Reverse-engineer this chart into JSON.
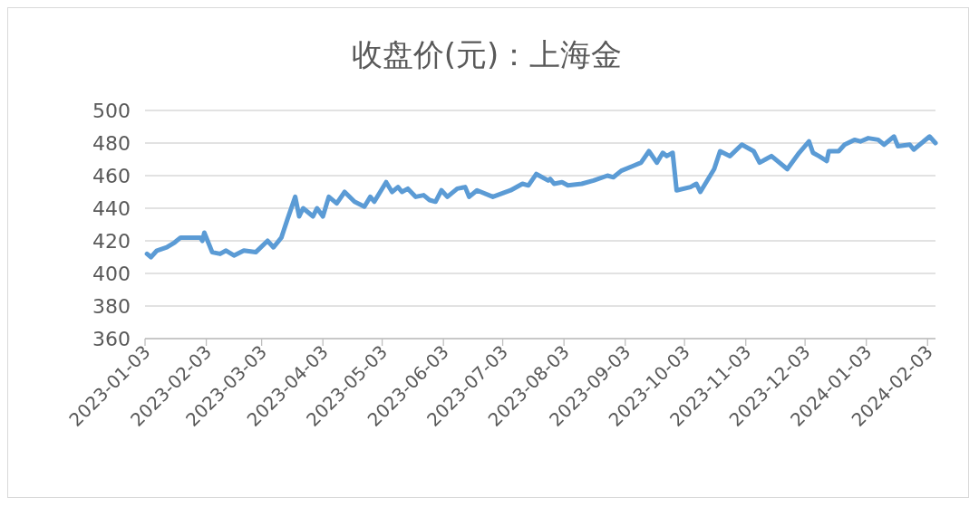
{
  "chart_data": {
    "type": "line",
    "title": "收盘价(元)：上海金",
    "x": [
      "2023-01-04",
      "2023-01-06",
      "2023-01-09",
      "2023-01-14",
      "2023-01-18",
      "2023-01-21",
      "2023-01-31",
      "2023-02-01",
      "2023-02-02",
      "2023-02-06",
      "2023-02-10",
      "2023-02-13",
      "2023-02-17",
      "2023-02-22",
      "2023-02-28",
      "2023-03-06",
      "2023-03-09",
      "2023-03-13",
      "2023-03-16",
      "2023-03-20",
      "2023-03-22",
      "2023-03-24",
      "2023-03-29",
      "2023-03-31",
      "2023-04-03",
      "2023-04-06",
      "2023-04-10",
      "2023-04-14",
      "2023-04-19",
      "2023-04-24",
      "2023-04-27",
      "2023-04-29",
      "2023-05-05",
      "2023-05-08",
      "2023-05-11",
      "2023-05-13",
      "2023-05-16",
      "2023-05-20",
      "2023-05-24",
      "2023-05-27",
      "2023-05-30",
      "2023-06-02",
      "2023-06-05",
      "2023-06-10",
      "2023-06-14",
      "2023-06-16",
      "2023-06-20",
      "2023-06-28",
      "2023-07-07",
      "2023-07-13",
      "2023-07-16",
      "2023-07-20",
      "2023-07-26",
      "2023-07-27",
      "2023-07-29",
      "2023-08-02",
      "2023-08-05",
      "2023-08-12",
      "2023-08-18",
      "2023-08-25",
      "2023-08-28",
      "2023-09-01",
      "2023-09-07",
      "2023-09-11",
      "2023-09-15",
      "2023-09-19",
      "2023-09-22",
      "2023-09-24",
      "2023-09-27",
      "2023-09-29",
      "2023-10-06",
      "2023-10-09",
      "2023-10-11",
      "2023-10-18",
      "2023-10-21",
      "2023-10-26",
      "2023-11-01",
      "2023-11-07",
      "2023-11-10",
      "2023-11-13",
      "2023-11-16",
      "2023-11-24",
      "2023-11-30",
      "2023-12-05",
      "2023-12-07",
      "2023-12-10",
      "2023-12-14",
      "2023-12-15",
      "2023-12-20",
      "2023-12-23",
      "2023-12-28",
      "2023-12-31",
      "2024-01-04",
      "2024-01-09",
      "2024-01-12",
      "2024-01-17",
      "2024-01-19",
      "2024-01-25",
      "2024-01-27",
      "2024-01-30",
      "2024-02-04",
      "2024-02-07"
    ],
    "series": [
      {
        "color": "#5b9bd5",
        "values": [
          412,
          410,
          414,
          416,
          419,
          422,
          422,
          420,
          425,
          413,
          412,
          414,
          411,
          414,
          413,
          420,
          416,
          422,
          433,
          447,
          435,
          440,
          435,
          440,
          435,
          447,
          443,
          450,
          444,
          441,
          447,
          444,
          456,
          450,
          453,
          450,
          452,
          447,
          448,
          445,
          444,
          451,
          447,
          452,
          453,
          447,
          451,
          447,
          451,
          455,
          454,
          461,
          457,
          458,
          455,
          456,
          454,
          455,
          457,
          460,
          459,
          463,
          466,
          468,
          475,
          468,
          474,
          472,
          474,
          451,
          453,
          455,
          450,
          464,
          475,
          472,
          479,
          475,
          468,
          470,
          472,
          464,
          474,
          481,
          474,
          472,
          469,
          475,
          475,
          479,
          482,
          481,
          483,
          482,
          479,
          484,
          478,
          479,
          476,
          479,
          484,
          480
        ]
      }
    ],
    "xlim": [
      "2023-01-03",
      "2024-02-07"
    ],
    "xticks": [
      "2023-01-03",
      "2023-02-03",
      "2023-03-03",
      "2023-04-03",
      "2023-05-03",
      "2023-06-03",
      "2023-07-03",
      "2023-08-03",
      "2023-09-03",
      "2023-10-03",
      "2023-11-03",
      "2023-12-03",
      "2024-01-03",
      "2024-02-03"
    ],
    "ylim": [
      360,
      500
    ],
    "yticks": [
      360,
      380,
      400,
      420,
      440,
      460,
      480,
      500
    ],
    "grid": "y"
  }
}
